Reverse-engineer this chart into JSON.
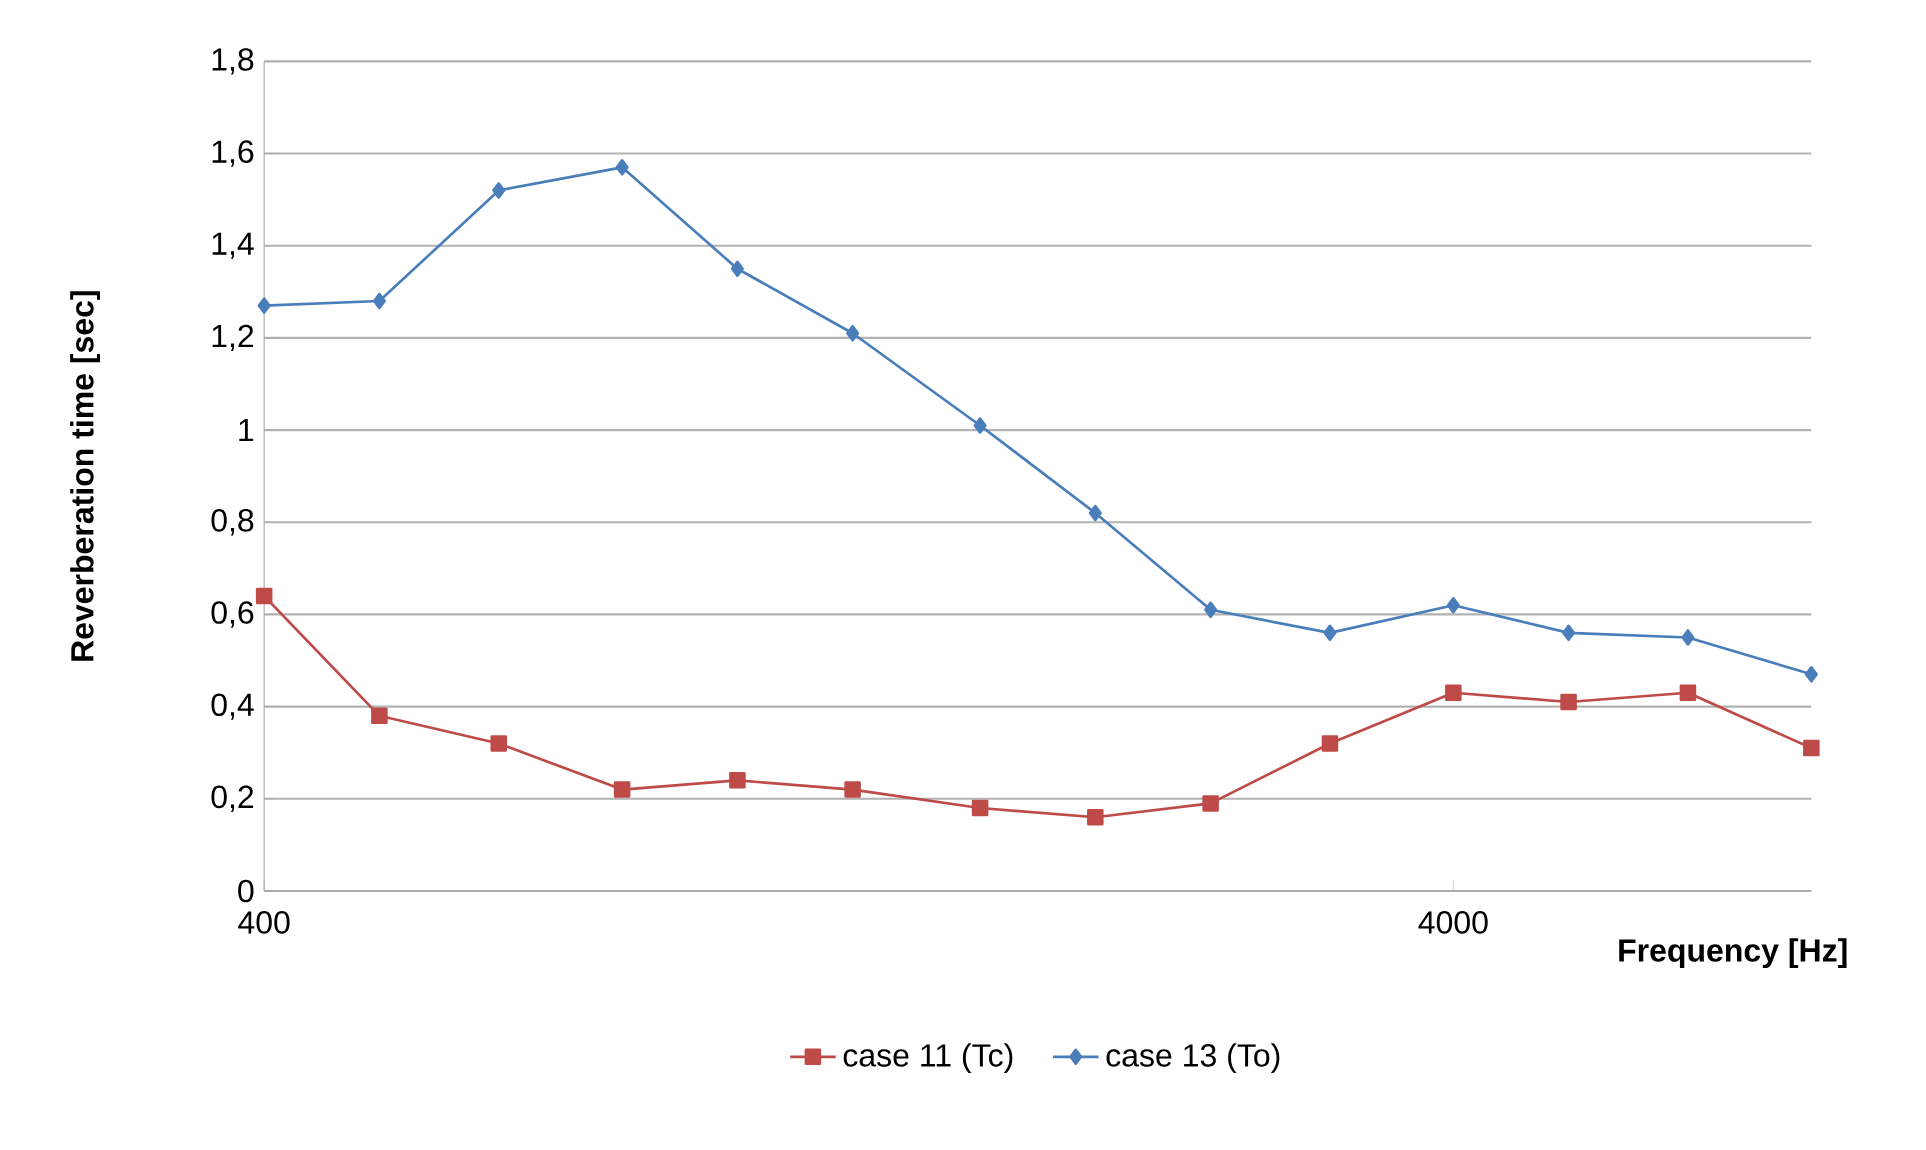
{
  "chart_data": {
    "type": "line",
    "xlabel": "Frequency [Hz]",
    "ylabel": "Reverberation time [sec]",
    "x": [
      400,
      500,
      630,
      800,
      1000,
      1250,
      1600,
      2000,
      2500,
      3150,
      4000,
      5000,
      6300,
      8000
    ],
    "series": [
      {
        "name": "case 11 (Tc)",
        "color": "#be4b48",
        "marker": "square",
        "values": [
          0.64,
          0.38,
          0.32,
          0.22,
          0.24,
          0.22,
          0.18,
          0.16,
          0.19,
          0.32,
          0.43,
          0.41,
          0.43,
          0.31
        ]
      },
      {
        "name": "case 13 (To)",
        "color": "#4a7ebb",
        "marker": "diamond",
        "values": [
          1.27,
          1.28,
          1.52,
          1.57,
          1.35,
          1.21,
          1.01,
          0.82,
          0.61,
          0.56,
          0.62,
          0.56,
          0.55,
          0.47
        ]
      }
    ],
    "log": "x",
    "xlim": [
      400,
      8000
    ],
    "xticks": [
      400,
      4000
    ],
    "ylim": [
      0,
      1.8
    ],
    "yticks": [
      {
        "value": 0,
        "label": "0"
      },
      {
        "value": 0.2,
        "label": "0,2"
      },
      {
        "value": 0.4,
        "label": "0,4"
      },
      {
        "value": 0.6,
        "label": "0,6"
      },
      {
        "value": 0.8,
        "label": "0,8"
      },
      {
        "value": 1,
        "label": "1"
      },
      {
        "value": 1.2,
        "label": "1,2"
      },
      {
        "value": 1.4,
        "label": "1,4"
      },
      {
        "value": 1.6,
        "label": "1,6"
      },
      {
        "value": 1.8,
        "label": "1,8"
      }
    ],
    "grid": "y",
    "legend": "bottom",
    "line_style": "solid"
  }
}
